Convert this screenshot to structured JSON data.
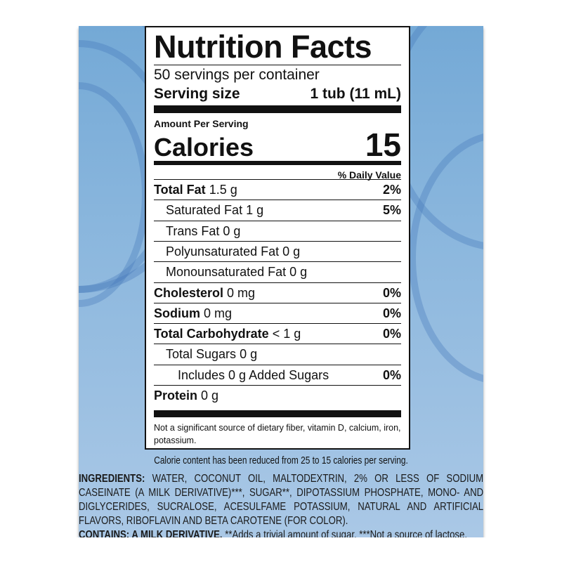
{
  "title": "Nutrition Facts",
  "servings": "50 servings per container",
  "serving_size_label": "Serving size",
  "serving_size_value": "1 tub (11 mL)",
  "amount_per_serving": "Amount Per Serving",
  "calories_label": "Calories",
  "calories_value": "15",
  "daily_value_header": "% Daily Value",
  "nutrients": [
    {
      "name": "Total Fat",
      "amount": "1.5 g",
      "dv": "2%",
      "bold": true,
      "indent": 0
    },
    {
      "name": "Saturated Fat",
      "amount": "1 g",
      "dv": "5%",
      "bold": false,
      "indent": 1
    },
    {
      "name": "Trans Fat",
      "amount": "0 g",
      "dv": "",
      "bold": false,
      "indent": 1
    },
    {
      "name": "Polyunsaturated Fat",
      "amount": "0 g",
      "dv": "",
      "bold": false,
      "indent": 1
    },
    {
      "name": "Monounsaturated Fat",
      "amount": "0 g",
      "dv": "",
      "bold": false,
      "indent": 1
    },
    {
      "name": "Cholesterol",
      "amount": "0 mg",
      "dv": "0%",
      "bold": true,
      "indent": 0
    },
    {
      "name": "Sodium",
      "amount": "0 mg",
      "dv": "0%",
      "bold": true,
      "indent": 0
    },
    {
      "name": "Total Carbohydrate",
      "amount": "< 1 g",
      "dv": "0%",
      "bold": true,
      "indent": 0
    },
    {
      "name": "Total Sugars",
      "amount": "0 g",
      "dv": "",
      "bold": false,
      "indent": 1
    },
    {
      "name": "Includes 0 g Added Sugars",
      "amount": "",
      "dv": "0%",
      "bold": false,
      "indent": 2
    },
    {
      "name": "Protein",
      "amount": "0 g",
      "dv": "",
      "bold": true,
      "indent": 0
    }
  ],
  "footnote": "Not a significant source of dietary fiber, vitamin D, calcium, iron, potassium.",
  "calorie_note": "Calorie content has been reduced from 25 to 15 calories per serving.",
  "ingredients_label": "INGREDIENTS:",
  "ingredients_lines": [
    " WATER, COCONUT OIL, MALTODEXTRIN, 2% OR LESS OF SODIUM",
    "CASEINATE (A MILK DERIVATIVE)***, SUGAR**, DIPOTASSIUM PHOSPHATE, MONO- AND",
    "DIGLYCERIDES, SUCRALOSE, ACESULFAME POTASSIUM, NATURAL AND ARTIFICIAL",
    "FLAVORS, RIBOFLAVIN AND BETA CAROTENE (FOR COLOR)."
  ],
  "contains_label": "CONTAINS: A MILK DERIVATIVE.",
  "contains_text": " **Adds a trivial amount of sugar. ***Not a source of lactose."
}
